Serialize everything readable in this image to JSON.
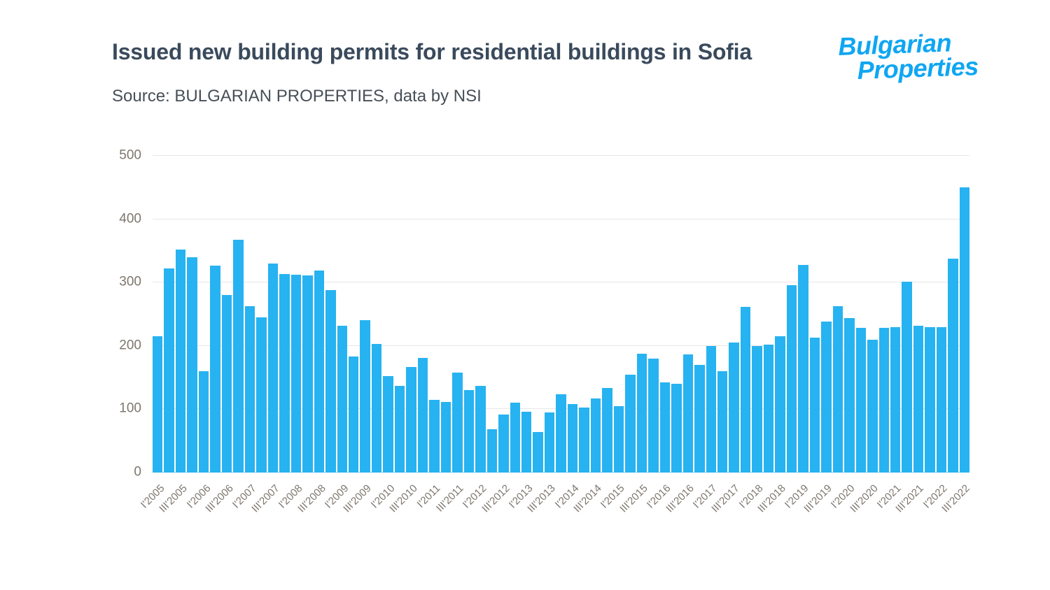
{
  "header": {
    "title": "Issued new building permits for residential buildings in Sofia",
    "source": "Source: BULGARIAN PROPERTIES, data by NSI"
  },
  "logo": {
    "line1": "Bulgarian",
    "line2": "Properties",
    "color": "#0fa6f2"
  },
  "colors": {
    "bar": "#27b3f1",
    "title": "#3a4a5c",
    "axis_label": "#7d766d",
    "grid": "#e7e7e7"
  },
  "chart_data": {
    "type": "bar",
    "title": "Issued new building permits for residential buildings in Sofia",
    "subtitle": "Source: BULGARIAN PROPERTIES, data by NSI",
    "xlabel": "",
    "ylabel": "",
    "ylim": [
      0,
      500
    ],
    "y_ticks": [
      0,
      100,
      200,
      300,
      400,
      500
    ],
    "grid": "horizontal",
    "legend": "none",
    "bar_color": "#27b3f1",
    "categories": [
      "I'2005",
      "II'2005",
      "III'2005",
      "IV'2005",
      "I'2006",
      "II'2006",
      "III'2006",
      "IV'2006",
      "I'2007",
      "II'2007",
      "III'2007",
      "IV'2007",
      "I'2008",
      "II'2008",
      "III'2008",
      "IV'2008",
      "I'2009",
      "II'2009",
      "III'2009",
      "IV'2009",
      "I'2010",
      "II'2010",
      "III'2010",
      "IV'2010",
      "I'2011",
      "II'2011",
      "III'2011",
      "IV'2011",
      "I'2012",
      "II'2012",
      "III'2012",
      "IV'2012",
      "I'2013",
      "II'2013",
      "III'2013",
      "IV'2013",
      "I'2014",
      "II'2014",
      "III'2014",
      "IV'2014",
      "I'2015",
      "II'2015",
      "III'2015",
      "IV'2015",
      "I'2016",
      "II'2016",
      "III'2016",
      "IV'2016",
      "I'2017",
      "II'2017",
      "III'2017",
      "IV'2017",
      "I'2018",
      "II'2018",
      "III'2018",
      "IV'2018",
      "I'2019",
      "II'2019",
      "III'2019",
      "IV'2019",
      "I'2020",
      "II'2020",
      "III'2020",
      "IV'2020",
      "I'2021",
      "II'2021",
      "III'2021",
      "IV'2021",
      "I'2022",
      "II'2022",
      "III'2022"
    ],
    "values": [
      215,
      322,
      352,
      340,
      160,
      327,
      280,
      368,
      263,
      245,
      330,
      313,
      312,
      311,
      319,
      288,
      232,
      183,
      241,
      203,
      152,
      137,
      167,
      181,
      115,
      112,
      158,
      130,
      137,
      68,
      92,
      110,
      96,
      64,
      95,
      124,
      108,
      103,
      117,
      134,
      105,
      155,
      188,
      180,
      142,
      140,
      187,
      170,
      200,
      160,
      205,
      262,
      200,
      202,
      215,
      296,
      328,
      213,
      238,
      263,
      244,
      228,
      210,
      228,
      230,
      301,
      232,
      230,
      230,
      338,
      450
    ],
    "x_tick_every": 2,
    "x_ticks": [
      "I'2005",
      "III'2005",
      "I'2006",
      "III'2006",
      "I'2007",
      "III'2007",
      "I'2008",
      "III'2008",
      "I'2009",
      "III'2009",
      "I'2010",
      "III'2010",
      "I'2011",
      "III'2011",
      "I'2012",
      "III'2012",
      "I'2013",
      "III'2013",
      "I'2014",
      "III'2014",
      "I'2015",
      "III'2015",
      "I'2016",
      "III'2016",
      "I'2017",
      "III'2017",
      "I'2018",
      "III'2018",
      "I'2019",
      "III'2019",
      "I'2020",
      "III'2020",
      "I'2021",
      "III'2021",
      "I'2022",
      "III'2022"
    ]
  }
}
